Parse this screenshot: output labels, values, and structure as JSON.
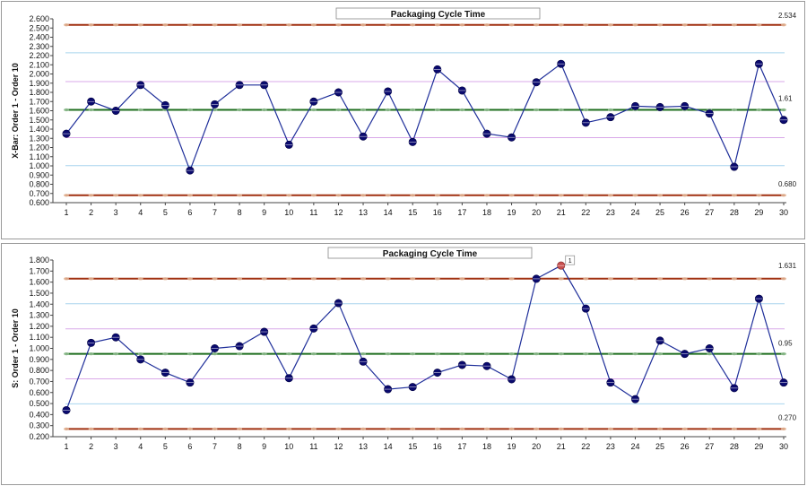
{
  "chart_data": [
    {
      "type": "line",
      "title": "Packaging Cycle Time",
      "ylabel": "X-Bar: Order 1 - Order 10",
      "xlabel": "",
      "categories": [
        "1",
        "2",
        "3",
        "4",
        "5",
        "6",
        "7",
        "8",
        "9",
        "10",
        "11",
        "12",
        "13",
        "14",
        "15",
        "16",
        "17",
        "18",
        "19",
        "20",
        "21",
        "22",
        "23",
        "24",
        "25",
        "26",
        "27",
        "28",
        "29",
        "30"
      ],
      "series": [
        {
          "values": [
            1.35,
            1.7,
            1.6,
            1.88,
            1.66,
            0.95,
            1.67,
            1.88,
            1.88,
            1.23,
            1.7,
            1.8,
            1.32,
            1.81,
            1.26,
            2.05,
            1.82,
            1.35,
            1.31,
            1.91,
            2.11,
            1.47,
            1.53,
            1.65,
            1.64,
            1.65,
            1.57,
            0.99,
            2.11,
            1.5
          ]
        }
      ],
      "ylim": [
        0.6,
        2.6
      ],
      "yticks": [
        "0.600",
        "0.700",
        "0.800",
        "0.900",
        "1.000",
        "1.100",
        "1.200",
        "1.300",
        "1.400",
        "1.500",
        "1.600",
        "1.700",
        "1.800",
        "1.900",
        "2.000",
        "2.100",
        "2.200",
        "2.300",
        "2.400",
        "2.500",
        "2.600"
      ],
      "ytick_min": 0.6,
      "ytick_step": 0.1,
      "control_limits": {
        "ucl": 2.534,
        "center": 1.61,
        "lcl": 0.68
      },
      "limit_labels": {
        "ucl": "2.534",
        "center": "1.61",
        "lcl": "0.680"
      },
      "zone_lines_blue": [
        1.003,
        2.231
      ],
      "zone_lines_purple": [
        1.307,
        1.917
      ],
      "out_of_control": [],
      "grid": false,
      "legend": "none"
    },
    {
      "type": "line",
      "title": "Packaging Cycle Time",
      "ylabel": "S: Order 1 - Order 10",
      "xlabel": "",
      "categories": [
        "1",
        "2",
        "3",
        "4",
        "5",
        "6",
        "7",
        "8",
        "9",
        "10",
        "11",
        "12",
        "13",
        "14",
        "15",
        "16",
        "17",
        "18",
        "19",
        "20",
        "21",
        "22",
        "23",
        "24",
        "25",
        "26",
        "27",
        "28",
        "29",
        "30"
      ],
      "series": [
        {
          "values": [
            0.44,
            1.05,
            1.1,
            0.9,
            0.78,
            0.69,
            1.0,
            1.02,
            1.15,
            0.73,
            1.18,
            1.41,
            0.88,
            0.63,
            0.65,
            0.78,
            0.85,
            0.84,
            0.72,
            1.63,
            1.75,
            1.36,
            0.69,
            0.54,
            1.07,
            0.95,
            1.0,
            0.64,
            1.45,
            0.69
          ]
        }
      ],
      "ylim": [
        0.2,
        1.8
      ],
      "yticks": [
        "0.200",
        "0.300",
        "0.400",
        "0.500",
        "0.600",
        "0.700",
        "0.800",
        "0.900",
        "1.000",
        "1.100",
        "1.200",
        "1.300",
        "1.400",
        "1.500",
        "1.600",
        "1.700",
        "1.800"
      ],
      "ytick_min": 0.2,
      "ytick_step": 0.1,
      "control_limits": {
        "ucl": 1.631,
        "center": 0.95,
        "lcl": 0.27
      },
      "limit_labels": {
        "ucl": "1.631",
        "center": "0.95",
        "lcl": "0.270"
      },
      "zone_lines_blue": [
        0.497,
        1.404
      ],
      "zone_lines_purple": [
        0.724,
        1.177
      ],
      "out_of_control": [
        {
          "index": 20,
          "label": "1"
        }
      ],
      "grid": false,
      "legend": "none"
    }
  ],
  "colors": {
    "series_line": "#1f2f9a",
    "marker": "#0a0a6e",
    "marker_out": "#c85050",
    "limit": "#a03010",
    "limit_dot": "#e0b090",
    "center": "#1e6e1e",
    "center_dot": "#8ab88a",
    "zone_blue": "#a8d4ee",
    "zone_purple": "#d9a8e8",
    "axis": "#444444"
  }
}
